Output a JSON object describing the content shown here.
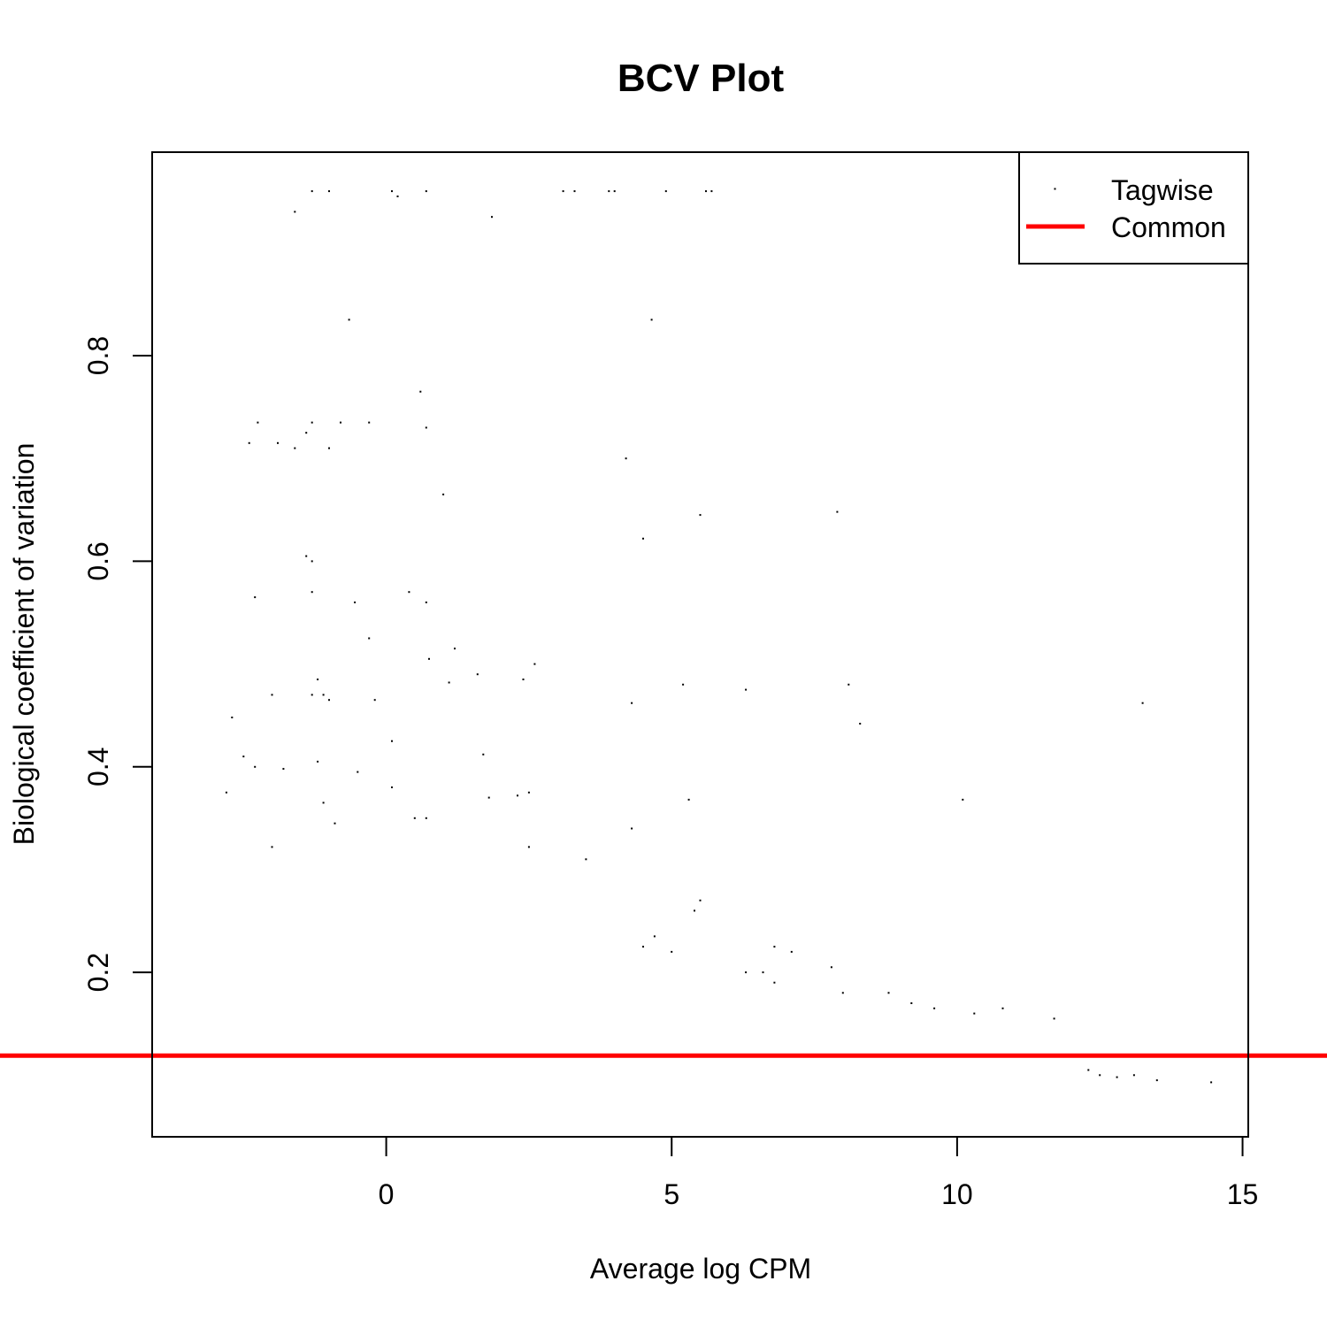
{
  "chart_data": {
    "type": "scatter",
    "title": "BCV Plot",
    "xlabel": "Average log CPM",
    "ylabel": "Biological coefficient of variation",
    "xlim": [
      -4.1,
      15.1
    ],
    "ylim": [
      0.04,
      0.998
    ],
    "x_ticks": [
      0,
      5,
      10,
      15
    ],
    "y_ticks": [
      0.2,
      0.4,
      0.6,
      0.8
    ],
    "x_tick_labels": [
      "0",
      "5",
      "10",
      "15"
    ],
    "y_tick_labels": [
      "0.2",
      "0.4",
      "0.6",
      "0.8"
    ],
    "grid": false,
    "legend": {
      "placement": "top-right",
      "entries": [
        {
          "label": "Tagwise",
          "kind": "point",
          "color": "#000000"
        },
        {
          "label": "Common",
          "kind": "line",
          "color": "#ff0000"
        }
      ]
    },
    "series": [
      {
        "name": "Tagwise",
        "kind": "point",
        "color": "#000000",
        "x": [
          -1.3,
          -1.0,
          0.1,
          0.2,
          0.7,
          3.1,
          3.3,
          3.9,
          4.0,
          4.9,
          5.6,
          5.7,
          -1.6,
          1.85,
          -0.65,
          4.65,
          0.6,
          0.7,
          -2.25,
          -2.4,
          -1.9,
          -1.6,
          -1.4,
          -1.3,
          -1.0,
          -0.8,
          -0.3,
          4.2,
          1.0,
          5.5,
          7.9,
          4.5,
          -1.4,
          -1.3,
          -1.3,
          -2.3,
          0.4,
          -0.55,
          0.7,
          -0.3,
          1.2,
          0.75,
          2.6,
          1.1,
          1.6,
          2.4,
          -1.2,
          5.2,
          -1.3,
          -1.1,
          6.3,
          8.1,
          4.3,
          -2.7,
          -1.0,
          -2.0,
          -0.2,
          8.3,
          13.25,
          -2.5,
          -1.2,
          -1.8,
          1.7,
          0.1,
          -2.3,
          -0.5,
          -2.8,
          0.1,
          2.5,
          2.3,
          1.8,
          -1.1,
          5.3,
          10.1,
          4.3,
          0.5,
          -0.9,
          3.5,
          2.5,
          -2.0,
          0.7,
          7.1,
          5.5,
          5.4,
          6.8,
          7.8,
          8.0,
          8.8,
          9.2,
          9.6,
          10.3,
          10.8,
          11.7,
          12.3,
          12.5,
          12.8,
          13.1,
          13.5,
          14.45,
          6.3,
          6.6,
          6.8,
          4.5,
          4.7,
          5.0
        ],
        "y": [
          0.96,
          0.96,
          0.96,
          0.955,
          0.96,
          0.96,
          0.96,
          0.96,
          0.96,
          0.96,
          0.96,
          0.96,
          0.94,
          0.935,
          0.835,
          0.835,
          0.765,
          0.73,
          0.735,
          0.715,
          0.715,
          0.71,
          0.725,
          0.735,
          0.71,
          0.735,
          0.735,
          0.7,
          0.665,
          0.645,
          0.648,
          0.622,
          0.605,
          0.6,
          0.57,
          0.565,
          0.57,
          0.56,
          0.56,
          0.525,
          0.515,
          0.505,
          0.5,
          0.482,
          0.49,
          0.485,
          0.485,
          0.48,
          0.47,
          0.47,
          0.475,
          0.48,
          0.462,
          0.448,
          0.465,
          0.47,
          0.465,
          0.442,
          0.462,
          0.41,
          0.405,
          0.398,
          0.412,
          0.425,
          0.4,
          0.395,
          0.375,
          0.38,
          0.375,
          0.372,
          0.37,
          0.365,
          0.368,
          0.368,
          0.34,
          0.35,
          0.345,
          0.31,
          0.322,
          0.322,
          0.35,
          0.22,
          0.27,
          0.26,
          0.225,
          0.205,
          0.18,
          0.18,
          0.17,
          0.165,
          0.16,
          0.165,
          0.155,
          0.105,
          0.1,
          0.098,
          0.1,
          0.095,
          0.093,
          0.2,
          0.2,
          0.19,
          0.225,
          0.235,
          0.22
        ]
      },
      {
        "name": "Common",
        "kind": "line",
        "color": "#ff0000",
        "y": 0.119
      }
    ]
  }
}
